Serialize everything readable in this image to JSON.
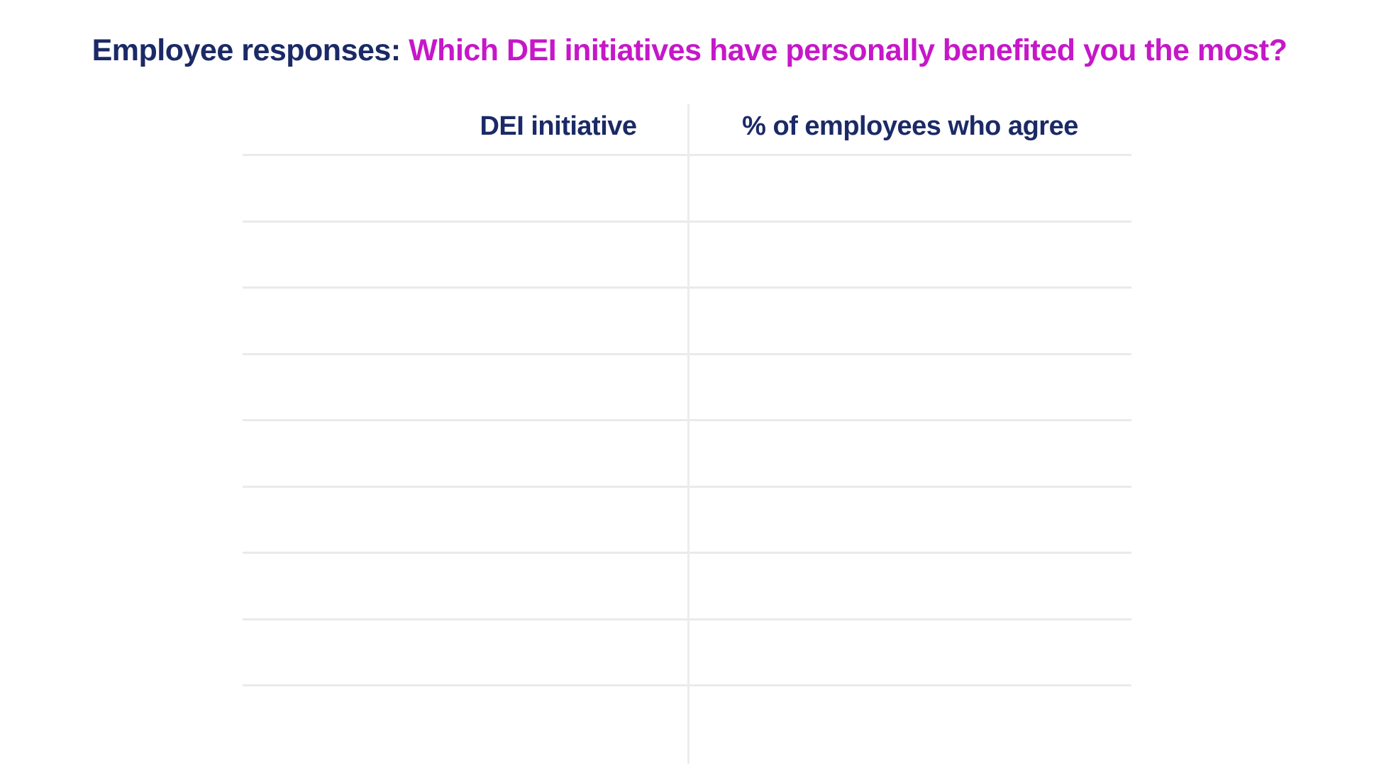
{
  "colors": {
    "navy": "#1b2a66",
    "magenta": "#c617c9",
    "horizontal_line": "#e9eaeb",
    "vertical_line": "#ececee",
    "background": "#ffffff"
  },
  "title": {
    "prefix": "Employee responses: ",
    "question": "Which DEI initiatives have personally benefited you the most?"
  },
  "table": {
    "columns": [
      {
        "label": "DEI initiative"
      },
      {
        "label": "% of employees who agree"
      }
    ],
    "rows": [
      {
        "initiative": "",
        "percent": ""
      },
      {
        "initiative": "",
        "percent": ""
      },
      {
        "initiative": "",
        "percent": ""
      },
      {
        "initiative": "",
        "percent": ""
      },
      {
        "initiative": "",
        "percent": ""
      },
      {
        "initiative": "",
        "percent": ""
      },
      {
        "initiative": "",
        "percent": ""
      },
      {
        "initiative": "",
        "percent": ""
      },
      {
        "initiative": "",
        "percent": ""
      }
    ]
  },
  "chart_data": {
    "type": "table",
    "title": "Employee responses: Which DEI initiatives have personally benefited you the most?",
    "columns": [
      "DEI initiative",
      "% of employees who agree"
    ],
    "rows": [
      [
        "",
        ""
      ],
      [
        "",
        ""
      ],
      [
        "",
        ""
      ],
      [
        "",
        ""
      ],
      [
        "",
        ""
      ],
      [
        "",
        ""
      ],
      [
        "",
        ""
      ],
      [
        "",
        ""
      ],
      [
        "",
        ""
      ]
    ],
    "row_count": 9,
    "layout": {
      "grid": "horizontal row separators + single vertical column divider",
      "cells_empty": true
    }
  }
}
